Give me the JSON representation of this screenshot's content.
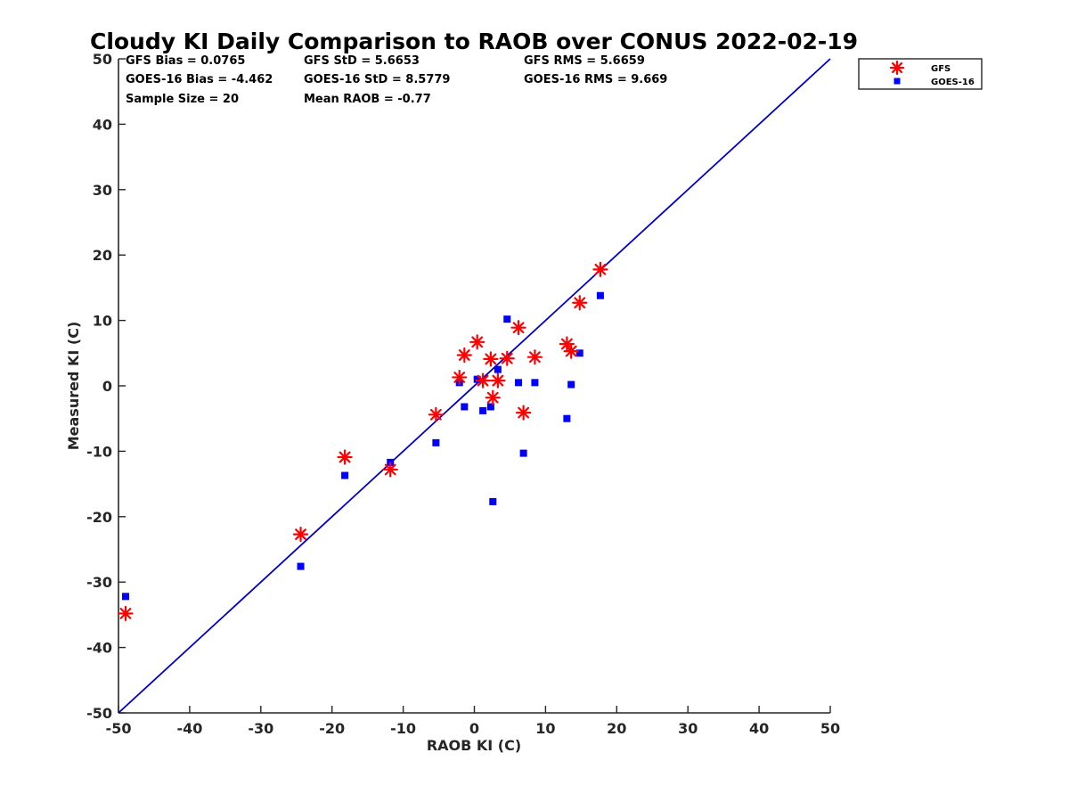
{
  "chart_data": {
    "type": "scatter",
    "title": "Cloudy KI Daily Comparison to RAOB over CONUS 2022-02-19",
    "xlabel": "RAOB KI (C)",
    "ylabel": "Measured KI (C)",
    "xlim": [
      -50,
      50
    ],
    "ylim": [
      -50,
      50
    ],
    "xticks": [
      "-50",
      "-40",
      "-30",
      "-20",
      "-10",
      "0",
      "10",
      "20",
      "30",
      "40",
      "50"
    ],
    "yticks": [
      "50",
      "40",
      "30",
      "20",
      "10",
      "0",
      "-10",
      "-20",
      "-30",
      "-40",
      "-50"
    ],
    "grid": false,
    "legend_position": "outside-top-right",
    "reference_line": {
      "from": [
        -50,
        -50
      ],
      "to": [
        50,
        50
      ],
      "color": "#0000cc"
    },
    "stats": [
      [
        "GFS Bias = 0.0765",
        "GFS StD = 5.6653",
        "GFS RMS = 5.6659"
      ],
      [
        "GOES-16 Bias = -4.462",
        "GOES-16 StD = 8.5779",
        "GOES-16 RMS = 9.669"
      ],
      [
        "Sample Size = 20",
        "Mean RAOB = -0.77"
      ]
    ],
    "series": [
      {
        "name": "GFS",
        "marker": "asterisk",
        "color": "#ff0000",
        "points": [
          [
            -49.0,
            -34.8
          ],
          [
            -24.4,
            -22.7
          ],
          [
            -18.2,
            -10.9
          ],
          [
            -11.8,
            -12.8
          ],
          [
            -5.4,
            -4.4
          ],
          [
            -2.1,
            1.3
          ],
          [
            -1.4,
            4.7
          ],
          [
            0.4,
            6.7
          ],
          [
            1.2,
            0.8
          ],
          [
            2.3,
            4.1
          ],
          [
            2.6,
            -1.8
          ],
          [
            3.3,
            0.8
          ],
          [
            4.6,
            4.2
          ],
          [
            6.2,
            8.9
          ],
          [
            6.9,
            -4.1
          ],
          [
            8.5,
            4.4
          ],
          [
            13.0,
            6.4
          ],
          [
            13.6,
            5.3
          ],
          [
            14.8,
            12.7
          ],
          [
            17.7,
            17.8
          ]
        ]
      },
      {
        "name": "GOES-16",
        "marker": "square",
        "color": "#0000ff",
        "points": [
          [
            -49.0,
            -32.2
          ],
          [
            -24.4,
            -27.6
          ],
          [
            -18.2,
            -13.7
          ],
          [
            -11.8,
            -11.7
          ],
          [
            -5.4,
            -8.7
          ],
          [
            -2.1,
            0.5
          ],
          [
            -1.4,
            -3.2
          ],
          [
            0.4,
            1.0
          ],
          [
            1.2,
            -3.8
          ],
          [
            2.3,
            -3.2
          ],
          [
            2.6,
            -17.7
          ],
          [
            3.3,
            2.5
          ],
          [
            4.6,
            10.2
          ],
          [
            6.2,
            0.5
          ],
          [
            6.9,
            -10.3
          ],
          [
            8.5,
            0.5
          ],
          [
            13.0,
            -5.0
          ],
          [
            13.6,
            0.2
          ],
          [
            14.8,
            5.0
          ],
          [
            17.7,
            13.8
          ]
        ]
      }
    ]
  }
}
